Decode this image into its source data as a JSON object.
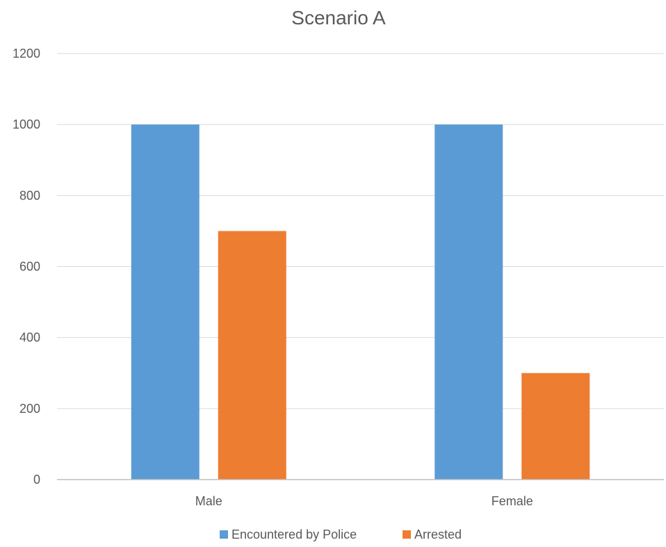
{
  "chart_data": {
    "type": "bar",
    "title": "Scenario A",
    "categories": [
      "Male",
      "Female"
    ],
    "series": [
      {
        "name": "Encountered by Police",
        "values": [
          1000,
          1000
        ],
        "color": "#5b9bd5"
      },
      {
        "name": "Arrested",
        "values": [
          700,
          300
        ],
        "color": "#ed7d31"
      }
    ],
    "ylim": [
      0,
      1200
    ],
    "yticks": [
      0,
      200,
      400,
      600,
      800,
      1000,
      1200
    ],
    "xlabel": "",
    "ylabel": "",
    "grid": true,
    "legend_position": "bottom",
    "gridline_color": "#d9d9d9",
    "axis_color": "#bfbfbf"
  }
}
